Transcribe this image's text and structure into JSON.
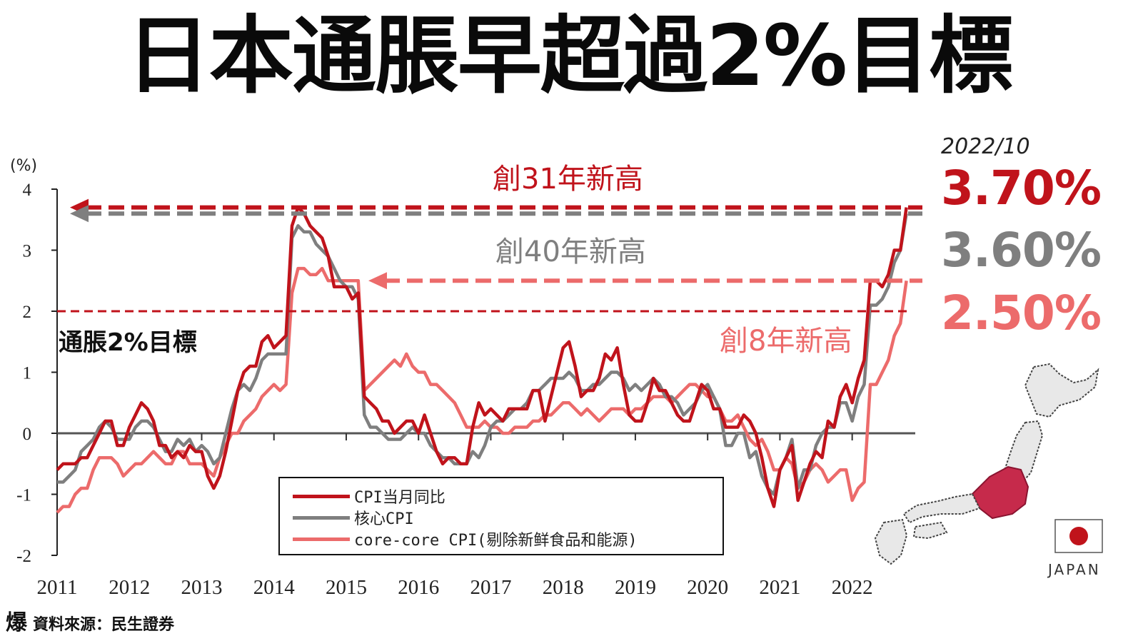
{
  "headline": "日本通脹早超過2%目標",
  "latest": {
    "date": "2022/10",
    "cpi": "3.70%",
    "core": "3.60%",
    "corecore": "2.50%"
  },
  "annotations": {
    "cpi_record": "創31年新高",
    "core_record": "創40年新高",
    "corecore_record": "創8年新高",
    "target_label": "通脹2%目標"
  },
  "source": {
    "logo": "爆",
    "text": "資料來源：民生證券"
  },
  "japan_label": "JAPAN",
  "colors": {
    "cpi": "#c0131b",
    "core": "#7f7f7f",
    "corecore": "#ec6b6b",
    "axis": "#222222"
  },
  "chart_data": {
    "type": "line",
    "ylabel": "(%)",
    "ylim": [
      -2,
      4
    ],
    "yticks": [
      -2,
      -1,
      0,
      1,
      2,
      3,
      4
    ],
    "x_start": 2011.0,
    "x_end": 2022.833,
    "xticks": [
      "2011",
      "2012",
      "2013",
      "2014",
      "2015",
      "2016",
      "2017",
      "2018",
      "2019",
      "2020",
      "2021",
      "2022"
    ],
    "target": 2,
    "series": [
      {
        "name": "CPI当月同比",
        "color": "#c0131b",
        "values": [
          -0.6,
          -0.5,
          -0.5,
          -0.5,
          -0.4,
          -0.4,
          -0.2,
          0.0,
          0.2,
          0.2,
          -0.2,
          -0.2,
          0.1,
          0.3,
          0.5,
          0.4,
          0.2,
          -0.2,
          -0.2,
          -0.4,
          -0.3,
          -0.4,
          -0.2,
          -0.3,
          -0.3,
          -0.7,
          -0.9,
          -0.7,
          -0.3,
          0.2,
          0.7,
          1.0,
          1.1,
          1.1,
          1.5,
          1.6,
          1.4,
          1.5,
          1.6,
          3.4,
          3.7,
          3.6,
          3.4,
          3.3,
          3.2,
          2.9,
          2.4,
          2.4,
          2.4,
          2.2,
          2.3,
          0.6,
          0.5,
          0.4,
          0.2,
          0.2,
          0.0,
          0.1,
          0.2,
          0.2,
          0.0,
          0.3,
          0.0,
          -0.3,
          -0.5,
          -0.4,
          -0.4,
          -0.5,
          -0.5,
          0.1,
          0.5,
          0.3,
          0.4,
          0.3,
          0.2,
          0.4,
          0.4,
          0.4,
          0.4,
          0.7,
          0.7,
          0.2,
          0.6,
          1.0,
          1.4,
          1.5,
          1.1,
          0.6,
          0.7,
          0.7,
          0.9,
          1.3,
          1.2,
          1.4,
          0.8,
          0.3,
          0.2,
          0.2,
          0.5,
          0.9,
          0.7,
          0.7,
          0.5,
          0.3,
          0.2,
          0.2,
          0.5,
          0.8,
          0.7,
          0.4,
          0.4,
          0.1,
          0.1,
          0.1,
          0.3,
          0.2,
          0.0,
          -0.4,
          -0.9,
          -1.2,
          -0.6,
          -0.4,
          -0.2,
          -1.1,
          -0.8,
          -0.5,
          -0.3,
          -0.4,
          0.2,
          0.1,
          0.6,
          0.8,
          0.5,
          0.9,
          1.2,
          2.5,
          2.5,
          2.4,
          2.6,
          3.0,
          3.0,
          3.7
        ]
      },
      {
        "name": "核心CPI",
        "color": "#7f7f7f",
        "values": [
          -0.8,
          -0.8,
          -0.7,
          -0.6,
          -0.3,
          -0.2,
          -0.1,
          0.1,
          0.2,
          0.1,
          -0.1,
          -0.1,
          -0.1,
          0.1,
          0.2,
          0.2,
          0.1,
          -0.1,
          -0.3,
          -0.3,
          -0.1,
          -0.2,
          -0.1,
          -0.3,
          -0.2,
          -0.3,
          -0.5,
          -0.4,
          0.0,
          0.4,
          0.7,
          0.8,
          0.7,
          0.9,
          1.2,
          1.3,
          1.3,
          1.3,
          1.3,
          3.2,
          3.4,
          3.3,
          3.3,
          3.1,
          3.0,
          2.9,
          2.7,
          2.5,
          2.4,
          2.4,
          2.2,
          0.3,
          0.1,
          0.1,
          0.0,
          -0.1,
          -0.1,
          -0.1,
          0.0,
          0.1,
          0.0,
          0.0,
          -0.2,
          -0.3,
          -0.4,
          -0.4,
          -0.5,
          -0.5,
          -0.5,
          -0.3,
          -0.4,
          -0.2,
          0.1,
          0.2,
          0.2,
          0.3,
          0.4,
          0.4,
          0.5,
          0.7,
          0.7,
          0.8,
          0.9,
          0.9,
          0.9,
          1.0,
          0.9,
          0.7,
          0.7,
          0.8,
          0.8,
          0.9,
          1.0,
          1.0,
          0.9,
          0.7,
          0.8,
          0.7,
          0.8,
          0.9,
          0.8,
          0.6,
          0.6,
          0.5,
          0.3,
          0.4,
          0.5,
          0.7,
          0.8,
          0.6,
          0.4,
          -0.2,
          -0.2,
          0.0,
          0.0,
          -0.4,
          -0.3,
          -0.7,
          -0.9,
          -1.0,
          -0.6,
          -0.4,
          -0.1,
          -0.9,
          -0.6,
          -0.6,
          -0.2,
          0.0,
          0.1,
          0.1,
          0.5,
          0.5,
          0.2,
          0.6,
          0.8,
          2.1,
          2.1,
          2.2,
          2.4,
          2.8,
          3.0,
          3.6
        ]
      },
      {
        "name": "core-core CPI(剔除新鲜食品和能源)",
        "color": "#ec6b6b",
        "values": [
          -1.3,
          -1.2,
          -1.2,
          -1.0,
          -0.9,
          -0.9,
          -0.6,
          -0.4,
          -0.4,
          -0.4,
          -0.5,
          -0.7,
          -0.6,
          -0.5,
          -0.5,
          -0.4,
          -0.3,
          -0.4,
          -0.5,
          -0.5,
          -0.3,
          -0.3,
          -0.5,
          -0.5,
          -0.5,
          -0.6,
          -0.7,
          -0.4,
          -0.2,
          0.0,
          0.0,
          0.2,
          0.3,
          0.4,
          0.6,
          0.7,
          0.8,
          0.7,
          0.8,
          2.3,
          2.7,
          2.7,
          2.6,
          2.6,
          2.7,
          2.5,
          2.5,
          2.5,
          2.5,
          2.5,
          2.5,
          0.7,
          0.8,
          0.9,
          1.0,
          1.1,
          1.2,
          1.1,
          1.3,
          1.1,
          1.0,
          1.0,
          0.8,
          0.8,
          0.7,
          0.6,
          0.5,
          0.3,
          0.1,
          0.1,
          0.1,
          0.2,
          0.1,
          0.1,
          0.0,
          0.0,
          0.1,
          0.1,
          0.1,
          0.2,
          0.2,
          0.3,
          0.3,
          0.4,
          0.5,
          0.5,
          0.4,
          0.3,
          0.4,
          0.3,
          0.2,
          0.3,
          0.4,
          0.4,
          0.4,
          0.3,
          0.4,
          0.4,
          0.5,
          0.6,
          0.6,
          0.6,
          0.5,
          0.6,
          0.7,
          0.8,
          0.8,
          0.7,
          0.6,
          0.6,
          0.4,
          0.2,
          0.2,
          0.3,
          0.1,
          -0.1,
          -0.2,
          -0.1,
          -0.3,
          -0.6,
          -0.6,
          -0.4,
          -0.5,
          -0.9,
          -0.8,
          -0.6,
          -0.5,
          -0.6,
          -0.8,
          -0.7,
          -0.6,
          -0.6,
          -1.1,
          -0.9,
          -0.8,
          0.8,
          0.8,
          1.0,
          1.2,
          1.6,
          1.8,
          2.5
        ]
      }
    ]
  }
}
